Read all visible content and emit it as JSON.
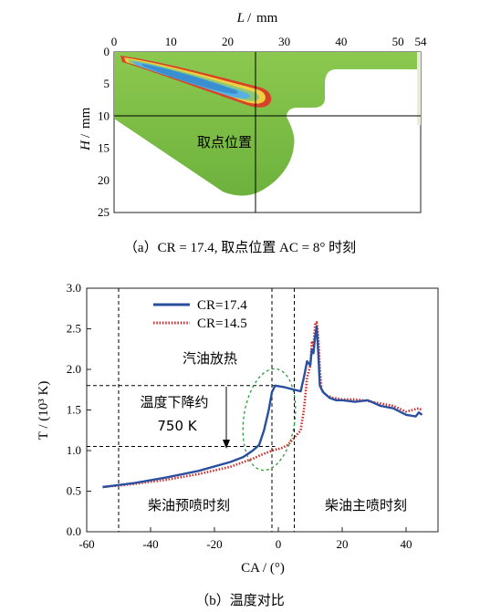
{
  "chart_data": [
    {
      "panel": "a",
      "type": "heatmap",
      "xaxis_label": "L",
      "xaxis_unit": "mm",
      "yaxis_label": "H",
      "yaxis_unit": "mm",
      "xlim": [
        0,
        54
      ],
      "ylim": [
        0,
        25
      ],
      "x_ticks": [
        "0",
        "10",
        "20",
        "30",
        "40",
        "50",
        "54"
      ],
      "y_ticks": [
        "0",
        "5",
        "10",
        "15",
        "20",
        "25"
      ],
      "marker": {
        "x": 25,
        "y": 10,
        "label": "取点位置"
      },
      "caption": "（a）CR = 17.4, 取点位置 AC = 8° 时刻",
      "colors": {
        "background": "#ffffff",
        "cylinder": "#7fc24a",
        "flame_outer": "#d84226",
        "flame_mid": "#f0d040",
        "flame_core": "#5ab0e0"
      }
    },
    {
      "panel": "b",
      "type": "line",
      "xlabel": "CA / (°)",
      "ylabel": "T / (10³ K)",
      "xlim": [
        -60,
        50
      ],
      "ylim": [
        0,
        3.0
      ],
      "x_ticks": [
        "-60",
        "-40",
        "-20",
        "0",
        "20",
        "40"
      ],
      "y_ticks": [
        "0.0",
        "0.5",
        "1.0",
        "1.5",
        "2.0",
        "2.5",
        "3.0"
      ],
      "legend_position": "top-left",
      "series": [
        {
          "name": "CR=17.4",
          "color": "#2a4f9f",
          "style": "solid",
          "points": [
            [
              -55,
              0.55
            ],
            [
              -45,
              0.6
            ],
            [
              -35,
              0.67
            ],
            [
              -25,
              0.75
            ],
            [
              -15,
              0.86
            ],
            [
              -11,
              0.92
            ],
            [
              -8,
              1.0
            ],
            [
              -6,
              1.07
            ],
            [
              -4.5,
              1.25
            ],
            [
              -3,
              1.5
            ],
            [
              -2,
              1.72
            ],
            [
              -1,
              1.8
            ],
            [
              2,
              1.78
            ],
            [
              5,
              1.75
            ],
            [
              7,
              1.73
            ],
            [
              8,
              1.9
            ],
            [
              9,
              2.1
            ],
            [
              10,
              2.05
            ],
            [
              10.5,
              2.25
            ],
            [
              11,
              2.2
            ],
            [
              11.5,
              2.4
            ],
            [
              12,
              2.53
            ],
            [
              12.5,
              2.2
            ],
            [
              13,
              1.8
            ],
            [
              14,
              1.72
            ],
            [
              16,
              1.65
            ],
            [
              18,
              1.62
            ],
            [
              20,
              1.62
            ],
            [
              24,
              1.6
            ],
            [
              28,
              1.62
            ],
            [
              32,
              1.55
            ],
            [
              36,
              1.52
            ],
            [
              40,
              1.44
            ],
            [
              43,
              1.42
            ],
            [
              44,
              1.47
            ],
            [
              45,
              1.44
            ]
          ]
        },
        {
          "name": "CR=14.5",
          "color": "#d02828",
          "style": "dotted",
          "points": [
            [
              -55,
              0.55
            ],
            [
              -45,
              0.59
            ],
            [
              -35,
              0.64
            ],
            [
              -25,
              0.71
            ],
            [
              -15,
              0.8
            ],
            [
              -8,
              0.9
            ],
            [
              -4,
              0.97
            ],
            [
              -1,
              1.01
            ],
            [
              1,
              1.03
            ],
            [
              3,
              1.07
            ],
            [
              5,
              1.16
            ],
            [
              7,
              1.25
            ],
            [
              8,
              1.5
            ],
            [
              8.5,
              1.7
            ],
            [
              9,
              1.9
            ],
            [
              10,
              2.05
            ],
            [
              10.5,
              2.35
            ],
            [
              11,
              2.3
            ],
            [
              11.5,
              2.55
            ],
            [
              12,
              2.58
            ],
            [
              12.5,
              2.4
            ],
            [
              13,
              2.0
            ],
            [
              13.5,
              1.75
            ],
            [
              15,
              1.68
            ],
            [
              17,
              1.65
            ],
            [
              20,
              1.63
            ],
            [
              24,
              1.63
            ],
            [
              28,
              1.61
            ],
            [
              32,
              1.58
            ],
            [
              36,
              1.55
            ],
            [
              40,
              1.48
            ],
            [
              44,
              1.52
            ],
            [
              45,
              1.5
            ]
          ]
        }
      ],
      "reference_lines": {
        "vertical": [
          -50,
          -2,
          5
        ],
        "horizontal": [
          1.8,
          1.05
        ]
      },
      "annotations": [
        {
          "text": "汽油放热"
        },
        {
          "text": "温度下降约"
        },
        {
          "text": "750 K"
        },
        {
          "text": "柴油预喷时刻"
        },
        {
          "text": "柴油主喷时刻"
        }
      ],
      "caption": "（b）温度对比"
    }
  ]
}
